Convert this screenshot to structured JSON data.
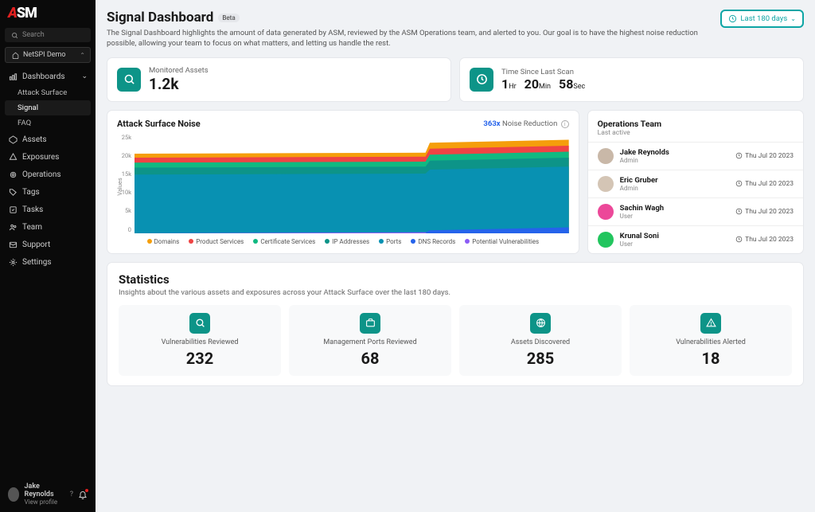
{
  "brand": {
    "a": "A",
    "sm": "SM"
  },
  "search": {
    "placeholder": "Search"
  },
  "org_select": {
    "value": "NetSPI Demo"
  },
  "nav": {
    "dashboards": "Dashboards",
    "sub": {
      "attack_surface": "Attack Surface",
      "signal": "Signal",
      "faq": "FAQ"
    },
    "assets": "Assets",
    "exposures": "Exposures",
    "operations": "Operations",
    "tags": "Tags",
    "tasks": "Tasks",
    "team": "Team",
    "support": "Support",
    "settings": "Settings"
  },
  "profile": {
    "name": "Jake Reynolds",
    "sub": "View profile"
  },
  "page": {
    "title": "Signal Dashboard",
    "badge": "Beta",
    "desc": "The Signal Dashboard highlights the amount of data generated by ASM, reviewed by the ASM Operations team, and alerted to you. Our goal is to have the highest noise reduction possible, allowing your team to focus on what matters, and letting us handle the rest."
  },
  "date_filter": "Last 180 days",
  "metrics": {
    "monitored": {
      "label": "Monitored Assets",
      "value": "1.2k"
    },
    "last_scan": {
      "label": "Time Since Last Scan",
      "h": "1",
      "h_unit": "Hr",
      "m": "20",
      "m_unit": "Min",
      "s": "58",
      "s_unit": "Sec"
    }
  },
  "chart": {
    "title": "Attack Surface Noise",
    "noise_reduction_value": "363x",
    "noise_reduction_label": "Noise Reduction",
    "y_label": "Values",
    "y_ticks": [
      "25k",
      "20k",
      "15k",
      "10k",
      "5k",
      "0"
    ],
    "ylim": [
      0,
      25000
    ],
    "type": "stacked-area",
    "background_color": "#ffffff",
    "series": [
      {
        "name": "Domains",
        "color": "#f59e0b",
        "top_left": 0.8,
        "top_right": 0.94
      },
      {
        "name": "Product Services",
        "color": "#ef4444",
        "top_left": 0.76,
        "top_right": 0.88
      },
      {
        "name": "Certificate Services",
        "color": "#10b981",
        "top_left": 0.71,
        "top_right": 0.82
      },
      {
        "name": "IP Addresses",
        "color": "#0d9488",
        "top_left": 0.66,
        "top_right": 0.76
      },
      {
        "name": "Ports",
        "color": "#0891b2",
        "top_left": 0.59,
        "top_right": 0.67
      },
      {
        "name": "DNS Records",
        "color": "#2563eb",
        "top_left": 0.0,
        "top_right": 0.06
      },
      {
        "name": "Potential Vulnerabilities",
        "color": "#8b5cf6",
        "top_left": 0.0,
        "top_right": 0.0
      }
    ],
    "step_x": 0.68
  },
  "ops": {
    "title": "Operations Team",
    "sub": "Last active",
    "members": [
      {
        "name": "Jake Reynolds",
        "role": "Admin",
        "time": "Thu Jul 20 2023",
        "avatar_color": "#c9b8a8"
      },
      {
        "name": "Eric Gruber",
        "role": "Admin",
        "time": "Thu Jul 20 2023",
        "avatar_color": "#d4c5b5"
      },
      {
        "name": "Sachin Wagh",
        "role": "User",
        "time": "Thu Jul 20 2023",
        "avatar_color": "#ec4899"
      },
      {
        "name": "Krunal Soni",
        "role": "User",
        "time": "Thu Jul 20 2023",
        "avatar_color": "#22c55e"
      }
    ]
  },
  "stats": {
    "title": "Statistics",
    "desc": "Insights about the various assets and exposures across your Attack Surface over the last 180 days.",
    "tiles": [
      {
        "label": "Vulnerabilities Reviewed",
        "value": "232",
        "icon": "search"
      },
      {
        "label": "Management Ports Reviewed",
        "value": "68",
        "icon": "briefcase"
      },
      {
        "label": "Assets Discovered",
        "value": "285",
        "icon": "globe"
      },
      {
        "label": "Vulnerabilities Alerted",
        "value": "18",
        "icon": "alert"
      }
    ]
  }
}
